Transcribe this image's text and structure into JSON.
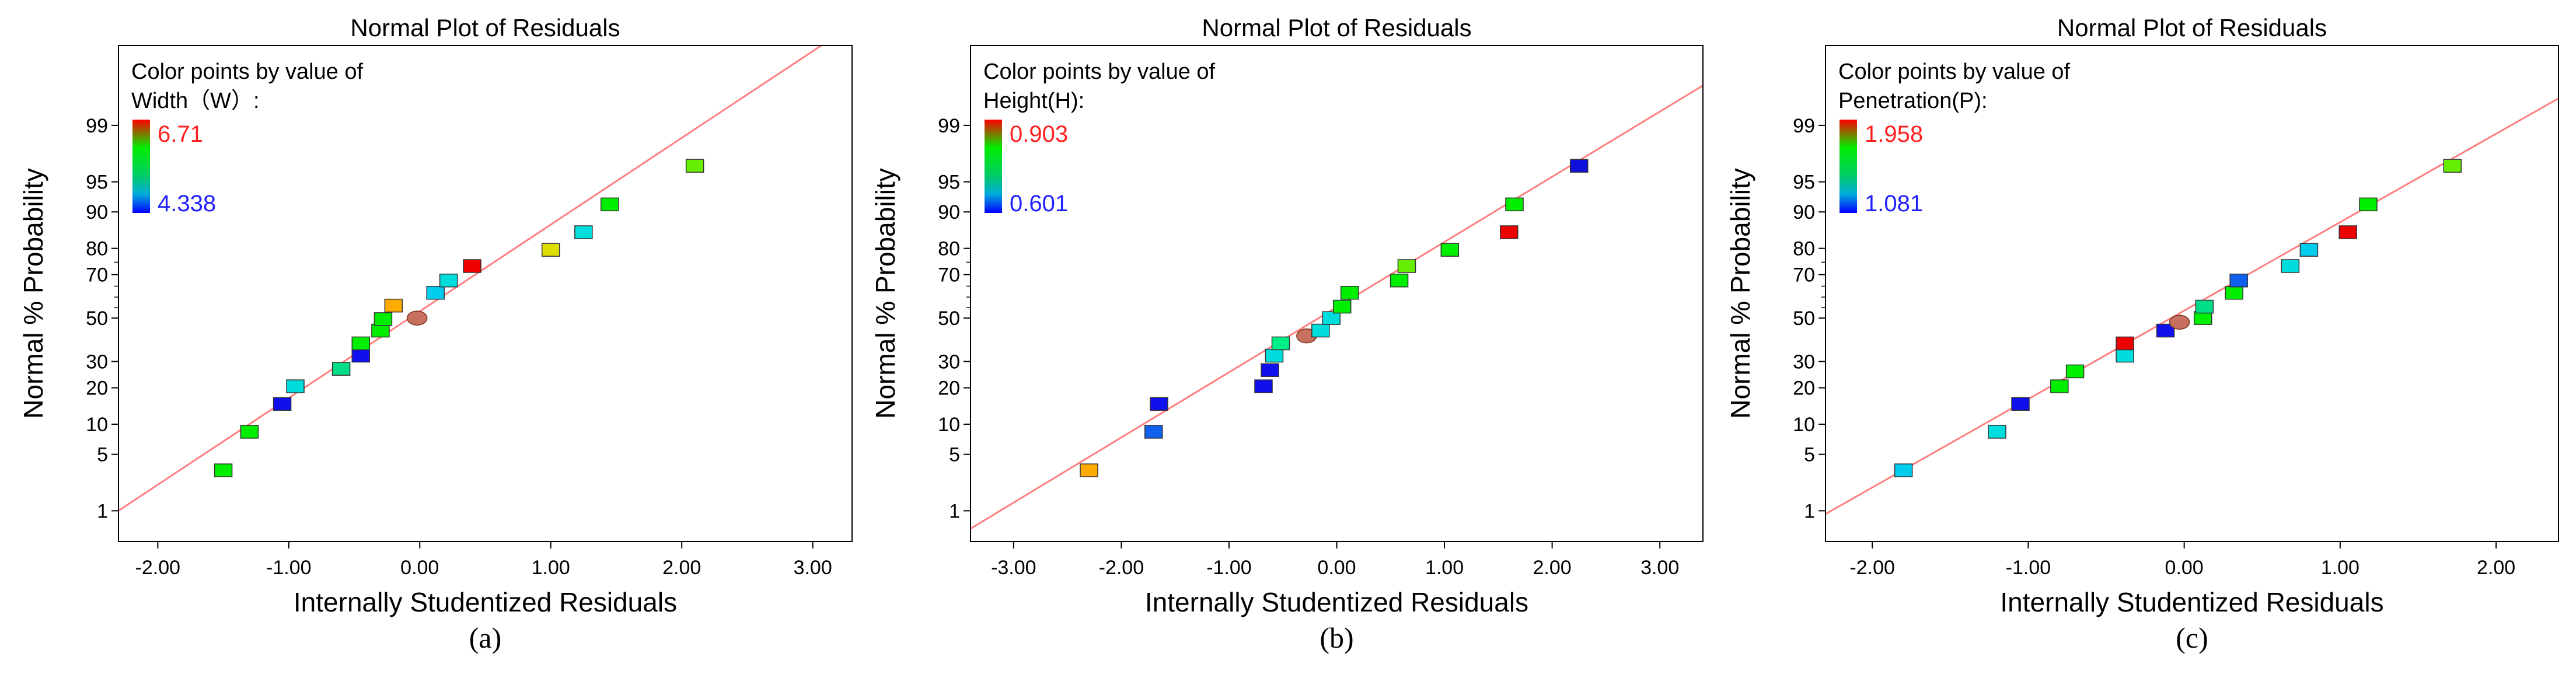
{
  "chart_data": [
    {
      "type": "scatter",
      "title": "Normal Plot of Residuals",
      "xlabel": "Internally Studentized Residuals",
      "ylabel": "Normal % Probability",
      "caption": "(a)",
      "xlim": [
        -2.3,
        3.3
      ],
      "x_ticks": [
        "-2.00",
        "-1.00",
        "0.00",
        "1.00",
        "2.00",
        "3.00"
      ],
      "x_tick_values": [
        -2,
        -1,
        0,
        1,
        2,
        3
      ],
      "y_ticks": [
        "1",
        "5",
        "10",
        "20",
        "30",
        "50",
        "70",
        "80",
        "90",
        "95",
        "99"
      ],
      "y_tick_values": [
        1,
        5,
        10,
        20,
        30,
        50,
        70,
        80,
        90,
        95,
        99
      ],
      "legend": {
        "line1": "Color points by value of",
        "line2": "Width（W）:",
        "high": "6.71",
        "low": "4.338"
      },
      "fit_line": {
        "x": [
          -2.3,
          3.2
        ],
        "p": [
          1.0,
          99.97
        ]
      },
      "points": [
        {
          "x": -1.5,
          "p": 3.3,
          "color": "#00ee00"
        },
        {
          "x": -1.3,
          "p": 8.5,
          "color": "#00ee00"
        },
        {
          "x": -1.05,
          "p": 15,
          "color": "#1010ee"
        },
        {
          "x": -0.95,
          "p": 20.5,
          "color": "#00dddd"
        },
        {
          "x": -0.6,
          "p": 27,
          "color": "#00dd88"
        },
        {
          "x": -0.45,
          "p": 32.5,
          "color": "#1010ee"
        },
        {
          "x": -0.45,
          "p": 38,
          "color": "#00ee00"
        },
        {
          "x": -0.3,
          "p": 44,
          "color": "#00ee00"
        },
        {
          "x": -0.28,
          "p": 49.5,
          "color": "#00ee00"
        },
        {
          "x": -0.2,
          "p": 56,
          "color": "#ffaa00"
        },
        {
          "x": -0.02,
          "p": 50,
          "color": "#c87060",
          "shape": "circle"
        },
        {
          "x": 0.12,
          "p": 62,
          "color": "#00ccee"
        },
        {
          "x": 0.22,
          "p": 67.5,
          "color": "#00dddd"
        },
        {
          "x": 0.4,
          "p": 73.5,
          "color": "#ee0000"
        },
        {
          "x": 1.0,
          "p": 79.5,
          "color": "#dddd00"
        },
        {
          "x": 1.25,
          "p": 85,
          "color": "#00dddd"
        },
        {
          "x": 1.45,
          "p": 91.5,
          "color": "#00ee00"
        },
        {
          "x": 2.1,
          "p": 96.7,
          "color": "#66ee00"
        }
      ]
    },
    {
      "type": "scatter",
      "title": "Normal Plot of Residuals",
      "xlabel": "Internally Studentized Residuals",
      "ylabel": "Normal % Probability",
      "caption": "(b)",
      "xlim": [
        -3.4,
        3.4
      ],
      "x_ticks": [
        "-3.00",
        "-2.00",
        "-1.00",
        "0.00",
        "1.00",
        "2.00",
        "3.00"
      ],
      "x_tick_values": [
        -3,
        -2,
        -1,
        0,
        1,
        2,
        3
      ],
      "y_ticks": [
        "1",
        "5",
        "10",
        "20",
        "30",
        "50",
        "70",
        "80",
        "90",
        "95",
        "99"
      ],
      "y_tick_values": [
        1,
        5,
        10,
        20,
        30,
        50,
        70,
        80,
        90,
        95,
        99
      ],
      "legend": {
        "line1": "Color points by value of",
        "line2": "Height(H):",
        "high": "0.903",
        "low": "0.601"
      },
      "fit_line": {
        "x": [
          -3.4,
          3.4
        ],
        "p": [
          0.55,
          99.75
        ]
      },
      "points": [
        {
          "x": -2.3,
          "p": 3.3,
          "color": "#ffaa00"
        },
        {
          "x": -1.7,
          "p": 8.5,
          "color": "#1060ee"
        },
        {
          "x": -1.65,
          "p": 15,
          "color": "#1010ee"
        },
        {
          "x": -0.68,
          "p": 20.5,
          "color": "#1010ee"
        },
        {
          "x": -0.62,
          "p": 26.5,
          "color": "#1010ee"
        },
        {
          "x": -0.58,
          "p": 32.5,
          "color": "#00dddd"
        },
        {
          "x": -0.52,
          "p": 38,
          "color": "#00ee88"
        },
        {
          "x": -0.28,
          "p": 41.5,
          "color": "#c87060",
          "shape": "circle"
        },
        {
          "x": -0.15,
          "p": 44,
          "color": "#00dddd"
        },
        {
          "x": -0.05,
          "p": 50,
          "color": "#00dddd"
        },
        {
          "x": 0.05,
          "p": 55.5,
          "color": "#00ee00"
        },
        {
          "x": 0.12,
          "p": 62,
          "color": "#00ee00"
        },
        {
          "x": 0.58,
          "p": 67.5,
          "color": "#00ee00"
        },
        {
          "x": 0.65,
          "p": 73.5,
          "color": "#66ee00"
        },
        {
          "x": 1.05,
          "p": 79.5,
          "color": "#00ee00"
        },
        {
          "x": 1.6,
          "p": 85,
          "color": "#ee0000"
        },
        {
          "x": 1.65,
          "p": 91.5,
          "color": "#00ee00"
        },
        {
          "x": 2.25,
          "p": 96.7,
          "color": "#1010dd"
        }
      ]
    },
    {
      "type": "scatter",
      "title": "Normal Plot of Residuals",
      "xlabel": "Internally Studentized Residuals",
      "ylabel": "Normal % Probability",
      "caption": "(c)",
      "xlim": [
        -2.3,
        2.4
      ],
      "x_ticks": [
        "-2.00",
        "-1.00",
        "0.00",
        "1.00",
        "2.00"
      ],
      "x_tick_values": [
        -2,
        -1,
        0,
        1,
        2
      ],
      "y_ticks": [
        "1",
        "5",
        "10",
        "20",
        "30",
        "50",
        "70",
        "80",
        "90",
        "95",
        "99"
      ],
      "y_tick_values": [
        1,
        5,
        10,
        20,
        30,
        50,
        70,
        80,
        90,
        95,
        99
      ],
      "legend": {
        "line1": "Color points by value of",
        "line2": "Penetration(P):",
        "high": "1.958",
        "low": "1.081"
      },
      "fit_line": {
        "x": [
          -2.3,
          2.4
        ],
        "p": [
          0.9,
          99.6
        ]
      },
      "points": [
        {
          "x": -1.8,
          "p": 3.3,
          "color": "#00ccee"
        },
        {
          "x": -1.2,
          "p": 8.5,
          "color": "#00dddd"
        },
        {
          "x": -1.05,
          "p": 15,
          "color": "#1010ee"
        },
        {
          "x": -0.8,
          "p": 20.5,
          "color": "#00ee00"
        },
        {
          "x": -0.7,
          "p": 26,
          "color": "#00ee00"
        },
        {
          "x": -0.38,
          "p": 32.5,
          "color": "#00dddd"
        },
        {
          "x": -0.38,
          "p": 38,
          "color": "#ee0000"
        },
        {
          "x": -0.12,
          "p": 44,
          "color": "#1010ee"
        },
        {
          "x": -0.03,
          "p": 48,
          "color": "#c87060",
          "shape": "circle"
        },
        {
          "x": 0.12,
          "p": 50,
          "color": "#00ee00"
        },
        {
          "x": 0.13,
          "p": 55.5,
          "color": "#00dd88"
        },
        {
          "x": 0.32,
          "p": 62,
          "color": "#00ee00"
        },
        {
          "x": 0.35,
          "p": 67.5,
          "color": "#1060ee"
        },
        {
          "x": 0.68,
          "p": 73.5,
          "color": "#00dddd"
        },
        {
          "x": 0.8,
          "p": 79.5,
          "color": "#00ccee"
        },
        {
          "x": 1.05,
          "p": 85,
          "color": "#ee0000"
        },
        {
          "x": 1.18,
          "p": 91.5,
          "color": "#00ee00"
        },
        {
          "x": 1.72,
          "p": 96.7,
          "color": "#66ee00"
        }
      ]
    }
  ]
}
